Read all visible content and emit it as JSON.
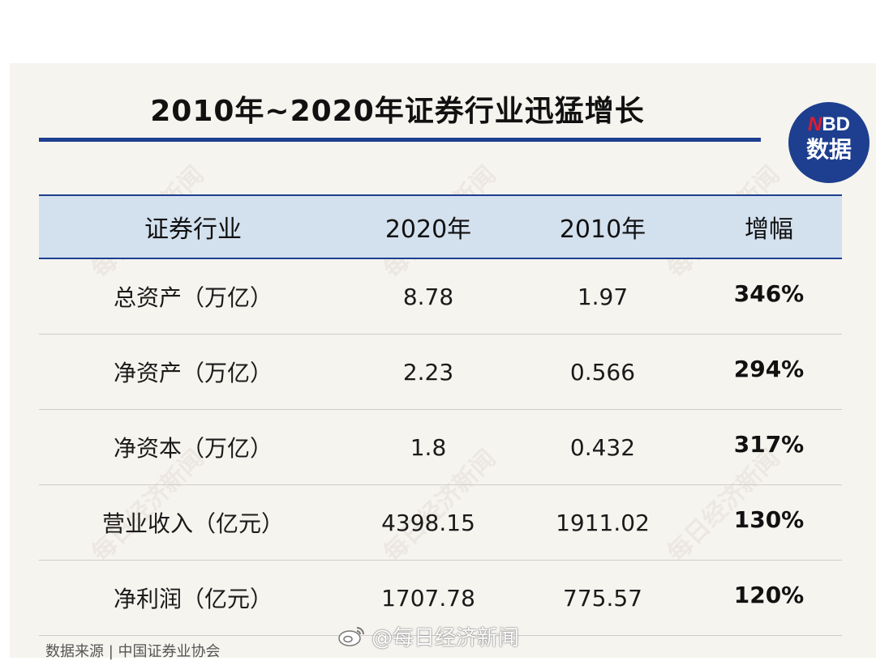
{
  "title": "2010年~2020年证券行业迅猛增长",
  "badge": {
    "mark": "N",
    "brand": "BD",
    "label": "数据"
  },
  "watermark_text": "每日经济新闻",
  "source": "数据来源 | 中国证券业协会",
  "weibo_handle": "@每日经济新闻",
  "colors": {
    "accent": "#1e3f8f",
    "header_bg": "#d3e0ee",
    "card_bg": "#f6f4ef",
    "brand_red": "#e21b2d"
  },
  "chart_data": {
    "type": "table",
    "title": "2010年~2020年证券行业迅猛增长",
    "columns": [
      "证券行业",
      "2020年",
      "2010年",
      "增幅"
    ],
    "rows": [
      {
        "metric": "总资产（万亿）",
        "y2020": "8.78",
        "y2010": "1.97",
        "growth": "346%"
      },
      {
        "metric": "净资产（万亿）",
        "y2020": "2.23",
        "y2010": "0.566",
        "growth": "294%"
      },
      {
        "metric": "净资本（万亿）",
        "y2020": "1.8",
        "y2010": "0.432",
        "growth": "317%"
      },
      {
        "metric": "营业收入（亿元）",
        "y2020": "4398.15",
        "y2010": "1911.02",
        "growth": "130%"
      },
      {
        "metric": "净利润（亿元）",
        "y2020": "1707.78",
        "y2010": "775.57",
        "growth": "120%"
      }
    ]
  }
}
